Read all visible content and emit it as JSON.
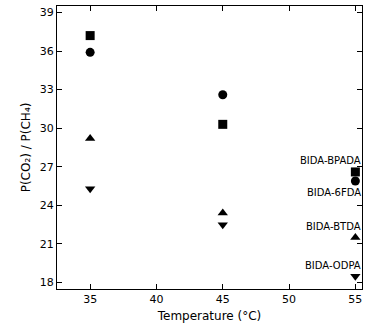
{
  "chart_data": {
    "type": "scatter",
    "x_label": "Temperature (°C)",
    "y_label": "P(CO₂) / P(CH₄)",
    "xlim": [
      32.5,
      55.5
    ],
    "xticks": [
      35,
      40,
      45,
      50,
      55
    ],
    "ylim": [
      17.5,
      39.5
    ],
    "yticks": [
      18,
      21,
      24,
      27,
      30,
      33,
      36,
      39
    ],
    "grid": false,
    "x": [
      35,
      45,
      55
    ],
    "series": [
      {
        "name": "BIDA-BPADA",
        "color": "#000000",
        "marker": "square",
        "values": [
          37.2,
          30.3,
          26.6
        ]
      },
      {
        "name": "BIDA-6FDA",
        "color": "#000000",
        "marker": "circle",
        "values": [
          35.9,
          32.6,
          25.9
        ]
      },
      {
        "name": "BIDA-BTDA",
        "color": "#000000",
        "marker": "triangle-up",
        "values": [
          29.2,
          23.4,
          21.5
        ]
      },
      {
        "name": "BIDA-ODPA",
        "color": "#000000",
        "marker": "triangle-down",
        "values": [
          25.3,
          22.5,
          18.5
        ]
      }
    ]
  }
}
